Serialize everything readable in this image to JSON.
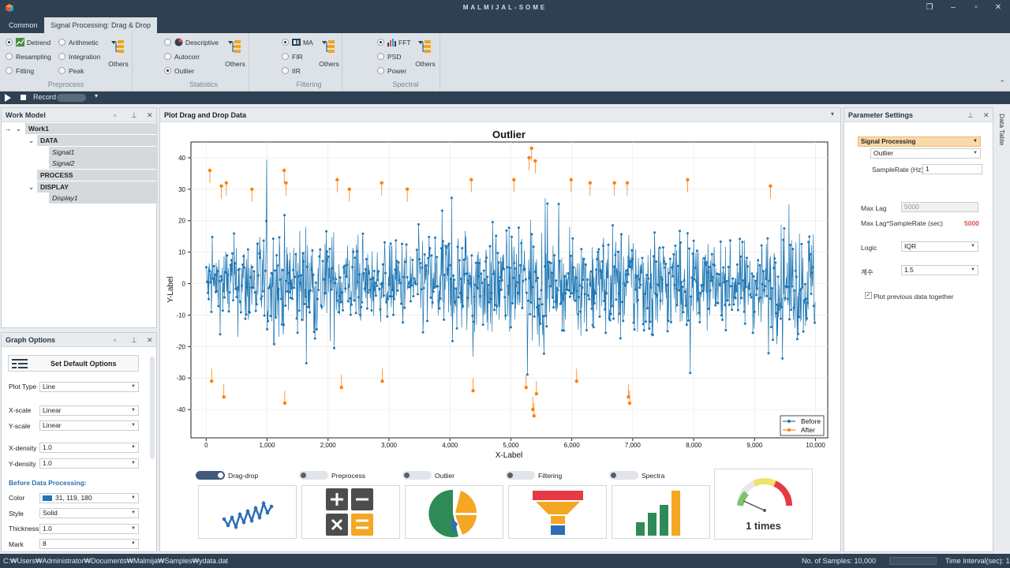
{
  "window": {
    "title": "MALMIJAL-SOME"
  },
  "tabs": [
    {
      "label": "Common",
      "active": false
    },
    {
      "label": "Signal Processing: Drag & Drop",
      "active": true
    }
  ],
  "ribbon": {
    "preprocess": {
      "label": "Preprocess",
      "items": [
        "Detrend",
        "Arithmetic",
        "Resampling",
        "Integration",
        "Fitting",
        "Peak"
      ],
      "others": "Others"
    },
    "statistics": {
      "label": "Statistics",
      "items": [
        "Descriptive",
        "Autocorr",
        "Outlier"
      ],
      "others": "Others"
    },
    "filtering": {
      "label": "Filtering",
      "items": [
        "MA",
        "FIR",
        "IIR"
      ],
      "others": "Others"
    },
    "spectral": {
      "label": "Spectral",
      "items": [
        "FFT",
        "PSD",
        "Power"
      ],
      "others": "Others"
    }
  },
  "record": {
    "label": "Record"
  },
  "work_model": {
    "title": "Work Model",
    "root": "Work1",
    "data_label": "DATA",
    "signals": [
      "Signal1",
      "Signal2"
    ],
    "process_label": "PROCESS",
    "display_label": "DISPLAY",
    "displays": [
      "Display1"
    ]
  },
  "graph_options": {
    "title": "Graph Options",
    "default_button": "Set Default Options",
    "plot_type": {
      "label": "Plot Type",
      "value": "Line"
    },
    "x_scale": {
      "label": "X-scale",
      "value": "Linear"
    },
    "y_scale": {
      "label": "Y-scale",
      "value": "Linear"
    },
    "x_density": {
      "label": "X-density",
      "value": "1.0"
    },
    "y_density": {
      "label": "Y-density",
      "value": "1.0"
    },
    "before_section": "Before Data Processing:",
    "color": {
      "label": "Color",
      "value": "31, 119, 180"
    },
    "style": {
      "label": "Style",
      "value": "Solid"
    },
    "thickness": {
      "label": "Thickness",
      "value": "1.0"
    },
    "mark": {
      "label": "Mark",
      "value": "8"
    }
  },
  "main": {
    "panel_title": "Plot Drag and Drop Data",
    "features": [
      "Drag-drop",
      "Preprocess",
      "Outlier",
      "Filtering",
      "Spectra"
    ],
    "counter_text": "1 times"
  },
  "chart_data": {
    "type": "line",
    "title": "Outlier",
    "xlabel": "X-Label",
    "ylabel": "Y-Label",
    "xlim": [
      -250,
      10200
    ],
    "ylim": [
      -49,
      45
    ],
    "x_ticks": [
      0,
      1000,
      2000,
      3000,
      4000,
      5000,
      6000,
      7000,
      8000,
      9000,
      10000
    ],
    "x_tick_labels": [
      "0",
      "1,000",
      "2,000",
      "3,000",
      "4,000",
      "5,000",
      "6,000",
      "7,000",
      "8,000",
      "9,000",
      "10,000"
    ],
    "y_ticks": [
      -40,
      -30,
      -20,
      -10,
      0,
      10,
      20,
      30,
      40
    ],
    "grid": true,
    "legend_position": "bottom-right",
    "series": [
      {
        "name": "Before",
        "color": "#1f77b4",
        "n_points": 10000,
        "range": [
          -43,
          43
        ]
      },
      {
        "name": "After",
        "color": "#ff7f0e",
        "marker": "outlier points",
        "points": [
          [
            60,
            36
          ],
          [
            90,
            -31
          ],
          [
            250,
            31
          ],
          [
            290,
            -36
          ],
          [
            330,
            32
          ],
          [
            750,
            30
          ],
          [
            1280,
            36
          ],
          [
            1290,
            -38
          ],
          [
            1310,
            32
          ],
          [
            2150,
            33
          ],
          [
            2220,
            -33
          ],
          [
            2350,
            30
          ],
          [
            2880,
            32
          ],
          [
            2890,
            -31
          ],
          [
            3300,
            30
          ],
          [
            4350,
            33
          ],
          [
            4380,
            -34
          ],
          [
            5050,
            33
          ],
          [
            5250,
            -33
          ],
          [
            5300,
            40
          ],
          [
            5340,
            43
          ],
          [
            5360,
            -40
          ],
          [
            5380,
            -42
          ],
          [
            5400,
            39
          ],
          [
            5420,
            -35
          ],
          [
            5990,
            33
          ],
          [
            6080,
            -31
          ],
          [
            6300,
            32
          ],
          [
            6700,
            32
          ],
          [
            6910,
            32
          ],
          [
            6930,
            -36
          ],
          [
            6950,
            -38
          ],
          [
            7900,
            33
          ],
          [
            9260,
            31
          ]
        ]
      }
    ]
  },
  "parameters": {
    "title": "Parameter Settings",
    "category": "Signal Processing",
    "method": "Outlier",
    "sample_rate": {
      "label": "SampleRate (Hz)",
      "value": "1"
    },
    "max_lag": {
      "label": "Max Lag",
      "value": "5000"
    },
    "max_lag_rate": {
      "label": "Max Lag*SampleRate (sec)",
      "value": "5000"
    },
    "logic": {
      "label": "Logic",
      "value": "IQR"
    },
    "coef": {
      "label": "계수",
      "value": "1.5"
    },
    "plot_previous": "Plot previous data together",
    "side_tab": "Data Table"
  },
  "status": {
    "path": "C:₩Users₩Administrator₩Documents₩Malmija₩Samples₩ydata.dat",
    "samples": "No. of Samples: 10,000",
    "interval": "Time Interval(sec): 1"
  }
}
